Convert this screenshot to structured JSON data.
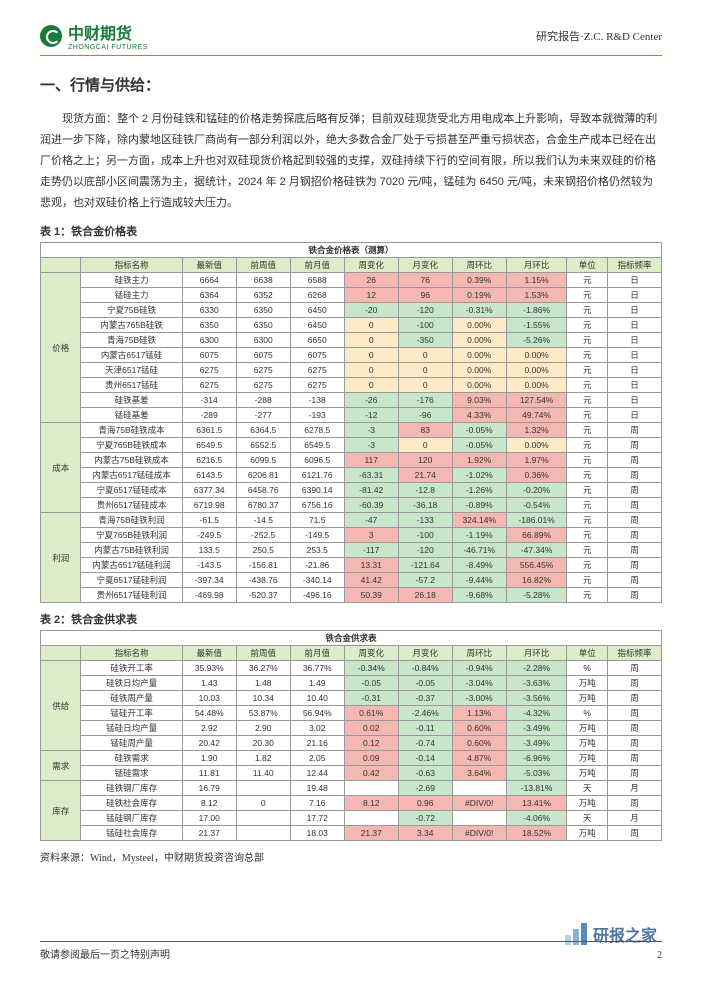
{
  "header": {
    "logo_text": "中财期货",
    "logo_sub": "ZHONGCAI FUTURES",
    "right": "研究报告·Z.C.  R&D Center"
  },
  "h1": "一、行情与供给：",
  "body": "现货方面：整个 2 月份硅铁和锰硅的价格走势探底后略有反弹；目前双硅现货受北方用电成本上升影响，导致本就微薄的利润进一步下降，除内蒙地区硅铁厂商尚有一部分利润以外，绝大多数合金厂处于亏损甚至严重亏损状态，合金生产成本已经在出厂价格之上；另一方面，成本上升也对双硅现货价格起到较强的支撑，双硅持续下行的空间有限，所以我们认为未来双硅的价格走势仍以底部小区间震荡为主，据统计，2024 年 2 月钢招价格硅铁为 7020 元/吨，锰硅为 6450 元/吨，未来钢招价格仍然较为悲观，也对双硅价格上行造成较大压力。",
  "t1": {
    "caption": "表 1：铁合金价格表",
    "title": "铁合金价格表（测算）",
    "cols": [
      "指标名称",
      "最新值",
      "前周值",
      "前月值",
      "周变化",
      "月变化",
      "周环比",
      "月环比",
      "单位",
      "指标频率"
    ],
    "col_widths": [
      "6%",
      "15%",
      "8%",
      "8%",
      "8%",
      "8%",
      "8%",
      "8%",
      "9%",
      "6%",
      "8%"
    ],
    "groups": [
      {
        "name": "价格",
        "rows": [
          {
            "c": [
              "硅铁主力",
              "6664",
              "6638",
              "6588",
              "26",
              "76",
              "0.39%",
              "1.15%",
              "元",
              "日"
            ],
            "styles": [
              "",
              "",
              "",
              "",
              "red",
              "red",
              "red",
              "red",
              "",
              ""
            ]
          },
          {
            "c": [
              "锰硅主力",
              "6364",
              "6352",
              "6268",
              "12",
              "96",
              "0.19%",
              "1.53%",
              "元",
              "日"
            ],
            "styles": [
              "",
              "",
              "",
              "",
              "red",
              "red",
              "red",
              "red",
              "",
              ""
            ]
          },
          {
            "c": [
              "宁夏75B硅铁",
              "6330",
              "6350",
              "6450",
              "-20",
              "-120",
              "-0.31%",
              "-1.86%",
              "元",
              "日"
            ],
            "styles": [
              "",
              "",
              "",
              "",
              "green",
              "green",
              "green",
              "green",
              "",
              ""
            ]
          },
          {
            "c": [
              "内蒙古765B硅铁",
              "6350",
              "6350",
              "6450",
              "0",
              "-100",
              "0.00%",
              "-1.55%",
              "元",
              "日"
            ],
            "styles": [
              "",
              "",
              "",
              "",
              "yellow",
              "green",
              "yellow",
              "green",
              "",
              ""
            ]
          },
          {
            "c": [
              "青海75B硅铁",
              "6300",
              "6300",
              "6650",
              "0",
              "-350",
              "0.00%",
              "-5.26%",
              "元",
              "日"
            ],
            "styles": [
              "",
              "",
              "",
              "",
              "yellow",
              "green",
              "yellow",
              "green",
              "",
              ""
            ]
          },
          {
            "c": [
              "内蒙古6517锰硅",
              "6075",
              "6075",
              "6075",
              "0",
              "0",
              "0.00%",
              "0.00%",
              "元",
              "日"
            ],
            "styles": [
              "",
              "",
              "",
              "",
              "yellow",
              "yellow",
              "yellow",
              "yellow",
              "",
              ""
            ]
          },
          {
            "c": [
              "天津6517锰硅",
              "6275",
              "6275",
              "6275",
              "0",
              "0",
              "0.00%",
              "0.00%",
              "元",
              "日"
            ],
            "styles": [
              "",
              "",
              "",
              "",
              "yellow",
              "yellow",
              "yellow",
              "yellow",
              "",
              ""
            ]
          },
          {
            "c": [
              "贵州6517锰硅",
              "6275",
              "6275",
              "6275",
              "0",
              "0",
              "0.00%",
              "0.00%",
              "元",
              "日"
            ],
            "styles": [
              "",
              "",
              "",
              "",
              "yellow",
              "yellow",
              "yellow",
              "yellow",
              "",
              ""
            ]
          },
          {
            "c": [
              "硅铁基差",
              "-314",
              "-288",
              "-138",
              "-26",
              "-176",
              "9.03%",
              "127.54%",
              "元",
              "日"
            ],
            "styles": [
              "",
              "",
              "",
              "",
              "green",
              "green",
              "red",
              "red",
              "",
              ""
            ]
          },
          {
            "c": [
              "锰硅基差",
              "-289",
              "-277",
              "-193",
              "-12",
              "-96",
              "4.33%",
              "49.74%",
              "元",
              "日"
            ],
            "styles": [
              "",
              "",
              "",
              "",
              "green",
              "green",
              "red",
              "red",
              "",
              ""
            ]
          }
        ]
      },
      {
        "name": "成本",
        "rows": [
          {
            "c": [
              "青海75B硅铁成本",
              "6361.5",
              "6364.5",
              "6278.5",
              "-3",
              "83",
              "-0.05%",
              "1.32%",
              "元",
              "周"
            ],
            "styles": [
              "",
              "",
              "",
              "",
              "green",
              "red",
              "green",
              "red",
              "",
              ""
            ]
          },
          {
            "c": [
              "宁夏765B硅铁成本",
              "6549.5",
              "6552.5",
              "6549.5",
              "-3",
              "0",
              "-0.05%",
              "0.00%",
              "元",
              "周"
            ],
            "styles": [
              "",
              "",
              "",
              "",
              "green",
              "yellow",
              "green",
              "yellow",
              "",
              ""
            ]
          },
          {
            "c": [
              "内蒙古75B硅铁成本",
              "6216.5",
              "6099.5",
              "6096.5",
              "117",
              "120",
              "1.92%",
              "1.97%",
              "元",
              "周"
            ],
            "styles": [
              "",
              "",
              "",
              "",
              "red",
              "red",
              "red",
              "red",
              "",
              ""
            ]
          },
          {
            "c": [
              "内蒙古6517锰硅成本",
              "6143.5",
              "6206.81",
              "6121.76",
              "-63.31",
              "21.74",
              "-1.02%",
              "0.36%",
              "元",
              "周"
            ],
            "styles": [
              "",
              "",
              "",
              "",
              "green",
              "red",
              "green",
              "red",
              "",
              ""
            ]
          },
          {
            "c": [
              "宁夏6517锰硅成本",
              "6377.34",
              "6458.76",
              "6390.14",
              "-81.42",
              "-12.8",
              "-1.26%",
              "-0.20%",
              "元",
              "周"
            ],
            "styles": [
              "",
              "",
              "",
              "",
              "green",
              "green",
              "green",
              "green",
              "",
              ""
            ]
          },
          {
            "c": [
              "贵州6517锰硅成本",
              "6719.98",
              "6780.37",
              "6756.16",
              "-60.39",
              "-36.18",
              "-0.89%",
              "-0.54%",
              "元",
              "周"
            ],
            "styles": [
              "",
              "",
              "",
              "",
              "green",
              "green",
              "green",
              "green",
              "",
              ""
            ]
          }
        ]
      },
      {
        "name": "利润",
        "rows": [
          {
            "c": [
              "青海75B硅铁利润",
              "-61.5",
              "-14.5",
              "71.5",
              "-47",
              "-133",
              "324.14%",
              "-186.01%",
              "元",
              "周"
            ],
            "styles": [
              "",
              "",
              "",
              "",
              "green",
              "green",
              "red",
              "green",
              "",
              ""
            ]
          },
          {
            "c": [
              "宁夏765B硅铁利润",
              "-249.5",
              "-252.5",
              "-149.5",
              "3",
              "-100",
              "-1.19%",
              "66.89%",
              "元",
              "周"
            ],
            "styles": [
              "",
              "",
              "",
              "",
              "red",
              "green",
              "green",
              "red",
              "",
              ""
            ]
          },
          {
            "c": [
              "内蒙古75B硅铁利润",
              "133.5",
              "250.5",
              "253.5",
              "-117",
              "-120",
              "-46.71%",
              "-47.34%",
              "元",
              "周"
            ],
            "styles": [
              "",
              "",
              "",
              "",
              "green",
              "green",
              "green",
              "green",
              "",
              ""
            ]
          },
          {
            "c": [
              "内蒙古6517锰硅利润",
              "-143.5",
              "-156.81",
              "-21.86",
              "13.31",
              "-121.64",
              "-8.49%",
              "556.45%",
              "元",
              "周"
            ],
            "styles": [
              "",
              "",
              "",
              "",
              "red",
              "green",
              "green",
              "red",
              "",
              ""
            ]
          },
          {
            "c": [
              "宁夏6517锰硅利润",
              "-397.34",
              "-438.76",
              "-340.14",
              "41.42",
              "-57.2",
              "-9.44%",
              "16.82%",
              "元",
              "周"
            ],
            "styles": [
              "",
              "",
              "",
              "",
              "red",
              "green",
              "green",
              "red",
              "",
              ""
            ]
          },
          {
            "c": [
              "贵州6517锰硅利润",
              "-469.98",
              "-520.37",
              "-496.16",
              "50.39",
              "26.18",
              "-9.68%",
              "-5.28%",
              "元",
              "周"
            ],
            "styles": [
              "",
              "",
              "",
              "",
              "red",
              "red",
              "green",
              "green",
              "",
              ""
            ]
          }
        ]
      }
    ]
  },
  "t2": {
    "caption": "表 2：铁合金供求表",
    "title": "铁合金供求表",
    "cols": [
      "指标名称",
      "最新值",
      "前周值",
      "前月值",
      "周变化",
      "月变化",
      "周环比",
      "月环比",
      "单位",
      "指标频率"
    ],
    "groups": [
      {
        "name": "供给",
        "rows": [
          {
            "c": [
              "硅铁开工率",
              "35.93%",
              "36.27%",
              "36.77%",
              "-0.34%",
              "-0.84%",
              "-0.94%",
              "-2.28%",
              "%",
              "周"
            ],
            "styles": [
              "",
              "",
              "",
              "",
              "green",
              "green",
              "green",
              "green",
              "",
              ""
            ]
          },
          {
            "c": [
              "硅铁日均产量",
              "1.43",
              "1.48",
              "1.49",
              "-0.05",
              "-0.05",
              "-3.04%",
              "-3.63%",
              "万吨",
              "周"
            ],
            "styles": [
              "",
              "",
              "",
              "",
              "green",
              "green",
              "green",
              "green",
              "",
              ""
            ]
          },
          {
            "c": [
              "硅铁周产量",
              "10.03",
              "10.34",
              "10.40",
              "-0.31",
              "-0.37",
              "-3.00%",
              "-3.56%",
              "万吨",
              "周"
            ],
            "styles": [
              "",
              "",
              "",
              "",
              "green",
              "green",
              "green",
              "green",
              "",
              ""
            ]
          },
          {
            "c": [
              "锰硅开工率",
              "54.48%",
              "53.87%",
              "56.94%",
              "0.61%",
              "-2.46%",
              "1.13%",
              "-4.32%",
              "%",
              "周"
            ],
            "styles": [
              "",
              "",
              "",
              "",
              "red",
              "green",
              "red",
              "green",
              "",
              ""
            ]
          },
          {
            "c": [
              "锰硅日均产量",
              "2.92",
              "2.90",
              "3.02",
              "0.02",
              "-0.11",
              "0.60%",
              "-3.49%",
              "万吨",
              "周"
            ],
            "styles": [
              "",
              "",
              "",
              "",
              "red",
              "green",
              "red",
              "green",
              "",
              ""
            ]
          },
          {
            "c": [
              "锰硅周产量",
              "20.42",
              "20.30",
              "21.16",
              "0.12",
              "-0.74",
              "0.60%",
              "-3.49%",
              "万吨",
              "周"
            ],
            "styles": [
              "",
              "",
              "",
              "",
              "red",
              "green",
              "red",
              "green",
              "",
              ""
            ]
          }
        ]
      },
      {
        "name": "需求",
        "rows": [
          {
            "c": [
              "硅铁需求",
              "1.90",
              "1.82",
              "2.05",
              "0.09",
              "-0.14",
              "4.87%",
              "-6.96%",
              "万吨",
              "周"
            ],
            "styles": [
              "",
              "",
              "",
              "",
              "red",
              "green",
              "red",
              "green",
              "",
              ""
            ]
          },
          {
            "c": [
              "锰硅需求",
              "11.81",
              "11.40",
              "12.44",
              "0.42",
              "-0.63",
              "3.64%",
              "-5.03%",
              "万吨",
              "周"
            ],
            "styles": [
              "",
              "",
              "",
              "",
              "red",
              "green",
              "red",
              "green",
              "",
              ""
            ]
          }
        ]
      },
      {
        "name": "库存",
        "rows": [
          {
            "c": [
              "硅铁钢厂库存",
              "16.79",
              "",
              "19.48",
              "",
              "-2.69",
              "",
              "-13.81%",
              "天",
              "月"
            ],
            "styles": [
              "",
              "",
              "",
              "",
              "",
              "green",
              "",
              "green",
              "",
              ""
            ]
          },
          {
            "c": [
              "硅铁社会库存",
              "8.12",
              "0",
              "7.16",
              "8.12",
              "0.96",
              "#DIV/0!",
              "13.41%",
              "万吨",
              "周"
            ],
            "styles": [
              "",
              "",
              "",
              "",
              "red",
              "red",
              "red",
              "red",
              "",
              ""
            ]
          },
          {
            "c": [
              "锰硅钢厂库存",
              "17.00",
              "",
              "17.72",
              "",
              "-0.72",
              "",
              "-4.06%",
              "天",
              "月"
            ],
            "styles": [
              "",
              "",
              "",
              "",
              "",
              "green",
              "",
              "green",
              "",
              ""
            ]
          },
          {
            "c": [
              "锰硅社会库存",
              "21.37",
              "",
              "18.03",
              "21.37",
              "3.34",
              "#DIV/0!",
              "18.52%",
              "万吨",
              "周"
            ],
            "styles": [
              "",
              "",
              "",
              "",
              "red",
              "red",
              "red",
              "red",
              "",
              ""
            ]
          }
        ]
      }
    ]
  },
  "source": "资料来源：Wind，Mysteel，中财期货投资咨询总部",
  "footer": {
    "left": "敬请参阅最后一页之特别声明",
    "page": "2"
  },
  "watermark": "研报之家",
  "colors": {
    "red": "#f5b7b1",
    "green": "#c8e6c9",
    "yellow": "#fdebc8",
    "header_green": "#ddecc9",
    "brand_green": "#1a7a3a",
    "rule": "#b8860b"
  }
}
